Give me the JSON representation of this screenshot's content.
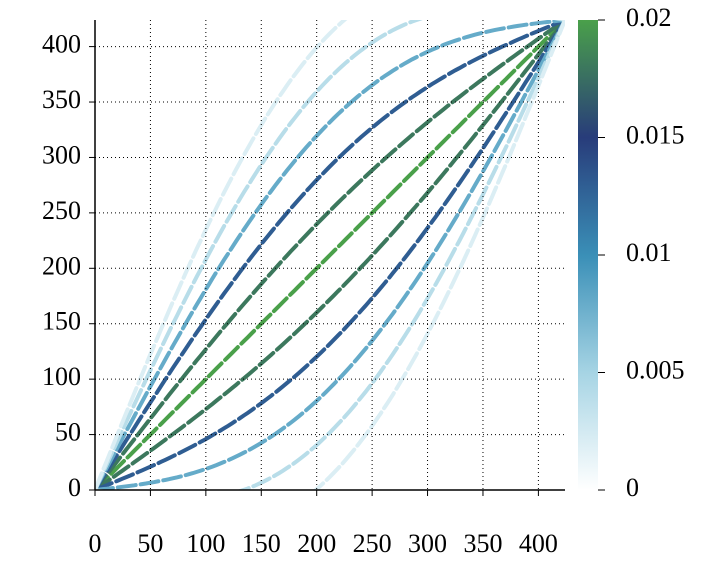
{
  "chart_data": {
    "type": "heatmap",
    "xlim": [
      0,
      424
    ],
    "ylim": [
      0,
      424
    ],
    "xticks": [
      0,
      50,
      100,
      150,
      200,
      250,
      300,
      350,
      400
    ],
    "yticks": [
      0,
      50,
      100,
      150,
      200,
      250,
      300,
      350,
      400
    ],
    "grid": true,
    "clim": [
      0,
      0.02
    ],
    "cticks": [
      0,
      0.005,
      0.01,
      0.015,
      0.02
    ],
    "colormap": [
      "#ffffff",
      "#a6d4e4",
      "#3a8fb7",
      "#283c7a",
      "#4aa04a"
    ],
    "stripes": [
      {
        "offset": 0,
        "value": 0.02
      },
      {
        "offset": 40,
        "value": 0.018
      },
      {
        "offset": -40,
        "value": 0.018
      },
      {
        "offset": 80,
        "value": 0.013
      },
      {
        "offset": -80,
        "value": 0.013
      },
      {
        "offset": 120,
        "value": 0.008
      },
      {
        "offset": -120,
        "value": 0.008
      },
      {
        "offset": 160,
        "value": 0.004
      },
      {
        "offset": -160,
        "value": 0.004
      },
      {
        "offset": 200,
        "value": 0.002
      },
      {
        "offset": -200,
        "value": 0.002
      }
    ]
  }
}
